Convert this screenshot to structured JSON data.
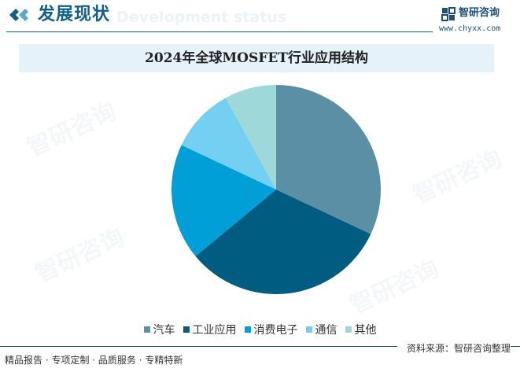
{
  "header": {
    "title": "发展现状",
    "ghost_subtitle": "Development status",
    "accent_color": "#0f5f86"
  },
  "brand": {
    "name": "智研咨询",
    "url": "www.chyxx.com"
  },
  "chart_data": {
    "type": "pie",
    "title": "2024年全球MOSFET行业应用结构",
    "categories": [
      "汽车",
      "工业应用",
      "消费电子",
      "通信",
      "其他"
    ],
    "values": [
      32,
      32,
      18,
      10,
      8
    ],
    "colors": [
      "#5b8fa5",
      "#005c80",
      "#009fd8",
      "#74d0f2",
      "#9fd8d8"
    ],
    "start_angle_deg": 0,
    "direction": "clockwise",
    "legend_position": "bottom"
  },
  "footer": {
    "left_text": "精品报告 · 专项定制 · 品质服务 · 专精特新",
    "right_text": "资料来源：智研咨询整理"
  },
  "watermark": "智研咨询"
}
